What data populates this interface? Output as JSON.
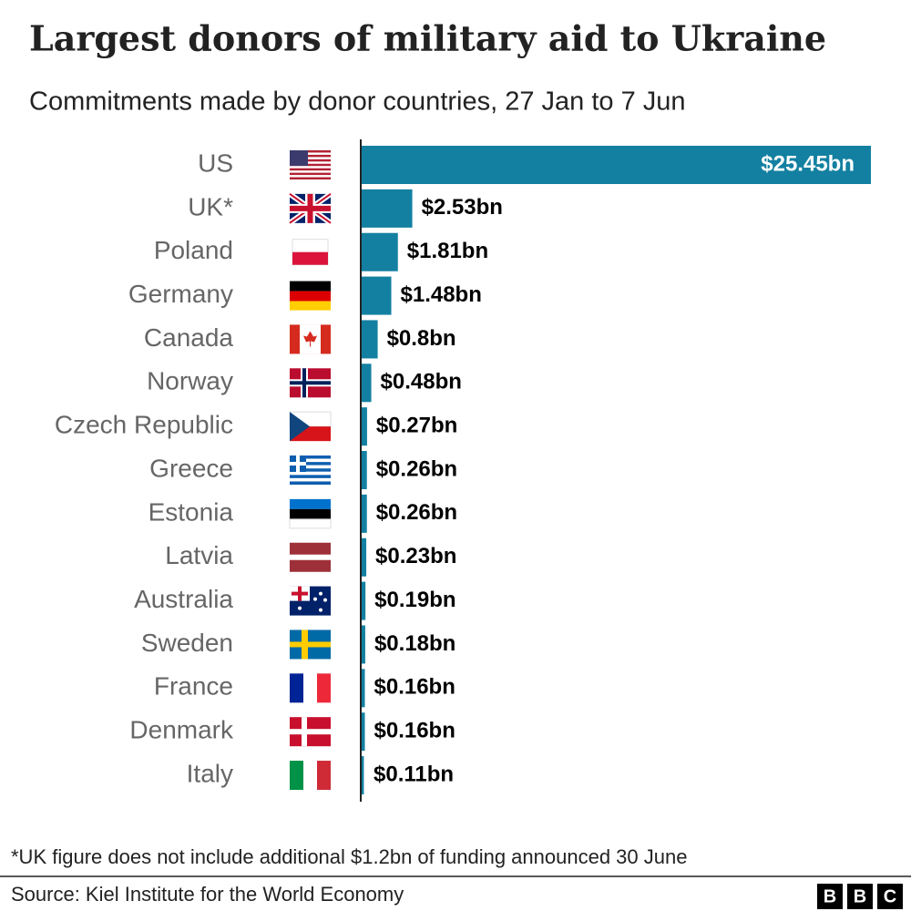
{
  "chart_data": {
    "type": "bar",
    "orientation": "horizontal",
    "title": "Largest donors of military aid to Ukraine",
    "subtitle": "Commitments made by donor countries, 27 Jan to 7 Jun",
    "categories": [
      "US",
      "UK*",
      "Poland",
      "Germany",
      "Canada",
      "Norway",
      "Czech Republic",
      "Greece",
      "Estonia",
      "Latvia",
      "Australia",
      "Sweden",
      "France",
      "Denmark",
      "Italy"
    ],
    "values": [
      25.45,
      2.53,
      1.81,
      1.48,
      0.8,
      0.48,
      0.27,
      0.26,
      0.26,
      0.23,
      0.19,
      0.18,
      0.16,
      0.16,
      0.11
    ],
    "value_labels": [
      "$25.45bn",
      "$2.53bn",
      "$1.81bn",
      "$1.48bn",
      "$0.8bn",
      "$0.48bn",
      "$0.27bn",
      "$0.26bn",
      "$0.26bn",
      "$0.23bn",
      "$0.19bn",
      "$0.18bn",
      "$0.16bn",
      "$0.16bn",
      "$0.11bn"
    ],
    "color": "#1380a1",
    "footnote": "*UK figure does not include additional $1.2bn of funding announced 30 June",
    "source": "Source: Kiel Institute for the World Economy",
    "logo_letters": [
      "B",
      "B",
      "C"
    ]
  }
}
